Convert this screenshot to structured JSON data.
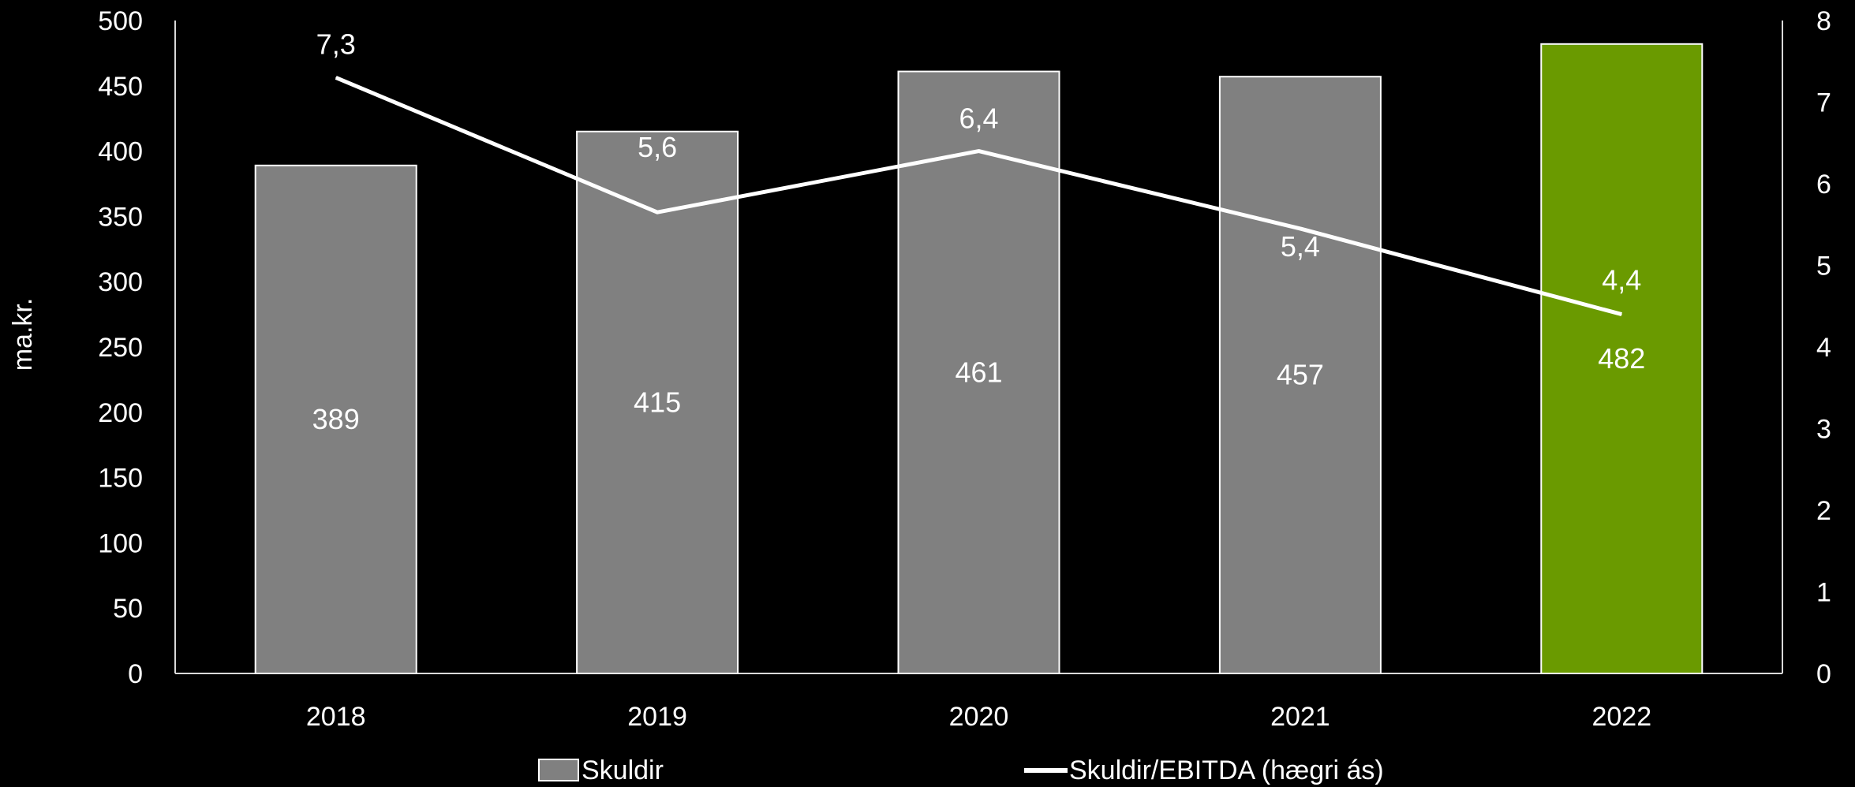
{
  "chart_data": {
    "type": "bar",
    "categories": [
      "2018",
      "2019",
      "2020",
      "2021",
      "2022"
    ],
    "series": [
      {
        "name": "Skuldir",
        "type": "bar",
        "axis": "left",
        "values": [
          389,
          415,
          461,
          457,
          482
        ],
        "colors": [
          "#808080",
          "#808080",
          "#808080",
          "#808080",
          "#6a9a00"
        ]
      },
      {
        "name": "Skuldir/EBITDA (hægri ás)",
        "type": "line",
        "axis": "right",
        "values": [
          7.3,
          5.65,
          6.4,
          5.45,
          4.4
        ],
        "labels": [
          "7,3",
          "5,6",
          "6,4",
          "5,4",
          "4,4"
        ],
        "color": "#ffffff"
      }
    ],
    "bar_labels": [
      "389",
      "415",
      "461",
      "457",
      "482"
    ],
    "ylabel": "ma.kr.",
    "ylim": [
      0,
      500
    ],
    "yticks": [
      "0",
      "50",
      "100",
      "150",
      "200",
      "250",
      "300",
      "350",
      "400",
      "450",
      "500"
    ],
    "y2lim": [
      0,
      8
    ],
    "y2ticks": [
      "0",
      "1",
      "2",
      "3",
      "4",
      "5",
      "6",
      "7",
      "8"
    ],
    "grid": false,
    "legend_position": "bottom"
  }
}
